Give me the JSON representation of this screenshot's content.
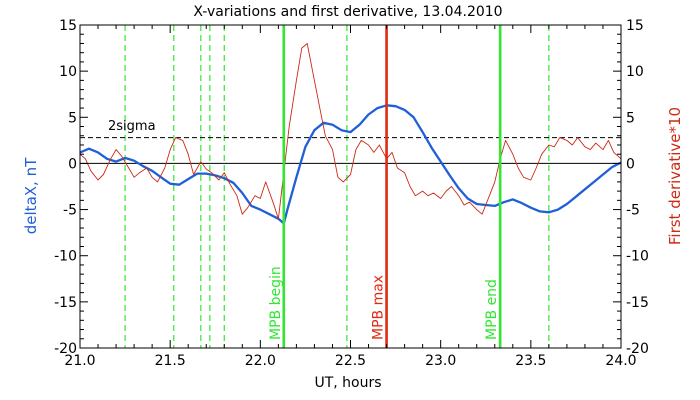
{
  "chart_data": {
    "type": "line",
    "title": "X-variations and first derivative, 13.04.2010",
    "xlabel": "UT, hours",
    "ylabel_left": "deltaX, nT",
    "ylabel_right": "First derivative*10",
    "xlim": [
      21.0,
      24.0
    ],
    "ylim": [
      -20,
      15
    ],
    "x_ticks": [
      21.0,
      21.5,
      22.0,
      22.5,
      23.0,
      23.5,
      24.0
    ],
    "x_tick_labels": [
      "21.0",
      "21.5",
      "22.0",
      "22.5",
      "23.0",
      "23.5",
      "24.0"
    ],
    "y_ticks": [
      15,
      10,
      5,
      0,
      -5,
      -10,
      -15,
      -20
    ],
    "y_tick_labels": [
      "15",
      "10",
      "5",
      "0",
      "-5",
      "-10",
      "-15",
      "-20"
    ],
    "sigma_level": 2.8,
    "sigma_label": "2sigma",
    "zero_line": 0,
    "series": [
      {
        "key": "deltax",
        "color": "#1f5fd8",
        "x": [
          21.0,
          21.05,
          21.1,
          21.15,
          21.2,
          21.25,
          21.3,
          21.35,
          21.4,
          21.45,
          21.5,
          21.55,
          21.6,
          21.65,
          21.7,
          21.75,
          21.8,
          21.85,
          21.9,
          21.95,
          22.0,
          22.05,
          22.1,
          22.13,
          22.15,
          22.2,
          22.25,
          22.3,
          22.35,
          22.4,
          22.45,
          22.5,
          22.55,
          22.6,
          22.65,
          22.7,
          22.75,
          22.8,
          22.85,
          22.9,
          22.95,
          23.0,
          23.05,
          23.1,
          23.15,
          23.2,
          23.25,
          23.3,
          23.35,
          23.4,
          23.45,
          23.5,
          23.55,
          23.6,
          23.65,
          23.7,
          23.75,
          23.8,
          23.85,
          23.9,
          23.95,
          24.0
        ],
        "values": [
          1.2,
          1.6,
          1.2,
          0.5,
          0.2,
          0.6,
          0.3,
          -0.3,
          -0.8,
          -1.5,
          -2.2,
          -2.3,
          -1.7,
          -1.1,
          -1.1,
          -1.3,
          -1.6,
          -2.1,
          -3.2,
          -4.6,
          -5.0,
          -5.5,
          -6.0,
          -6.5,
          -5.0,
          -1.5,
          1.8,
          3.6,
          4.4,
          4.2,
          3.6,
          3.4,
          4.2,
          5.3,
          6.0,
          6.3,
          6.2,
          5.8,
          5.0,
          3.4,
          1.7,
          0.2,
          -1.3,
          -2.7,
          -3.8,
          -4.4,
          -4.5,
          -4.6,
          -4.2,
          -3.9,
          -4.3,
          -4.8,
          -5.2,
          -5.3,
          -5.0,
          -4.4,
          -3.6,
          -2.8,
          -2.0,
          -1.2,
          -0.4,
          0.1
        ]
      },
      {
        "key": "derivative",
        "color": "#cc2a15",
        "x": [
          21.0,
          21.03,
          21.06,
          21.1,
          21.13,
          21.17,
          21.2,
          21.23,
          21.27,
          21.3,
          21.33,
          21.37,
          21.4,
          21.43,
          21.47,
          21.5,
          21.53,
          21.57,
          21.6,
          21.63,
          21.67,
          21.7,
          21.73,
          21.77,
          21.8,
          21.83,
          21.87,
          21.9,
          21.93,
          21.97,
          22.0,
          22.03,
          22.07,
          22.1,
          22.13,
          22.16,
          22.2,
          22.23,
          22.26,
          22.3,
          22.33,
          22.36,
          22.4,
          22.43,
          22.46,
          22.5,
          22.53,
          22.56,
          22.6,
          22.63,
          22.66,
          22.7,
          22.73,
          22.76,
          22.8,
          22.83,
          22.86,
          22.9,
          22.93,
          22.96,
          23.0,
          23.03,
          23.06,
          23.1,
          23.13,
          23.16,
          23.2,
          23.23,
          23.26,
          23.3,
          23.33,
          23.36,
          23.4,
          23.43,
          23.46,
          23.5,
          23.53,
          23.56,
          23.6,
          23.63,
          23.66,
          23.7,
          23.73,
          23.76,
          23.8,
          23.83,
          23.86,
          23.9,
          23.93,
          23.96,
          24.0
        ],
        "values": [
          1.0,
          0.5,
          -0.8,
          -1.8,
          -1.2,
          0.5,
          1.5,
          0.8,
          -0.5,
          -1.5,
          -1.0,
          -0.5,
          -1.5,
          -2.0,
          -0.5,
          1.5,
          2.8,
          2.5,
          1.0,
          -1.2,
          0.2,
          -0.6,
          -1.0,
          -1.8,
          -1.0,
          -2.2,
          -3.5,
          -5.5,
          -4.8,
          -3.5,
          -3.8,
          -2.0,
          -4.2,
          -6.0,
          -1.0,
          4.0,
          9.0,
          12.5,
          13.0,
          9.0,
          6.0,
          3.0,
          1.5,
          -1.5,
          -2.0,
          -1.2,
          1.5,
          2.5,
          2.0,
          1.2,
          2.0,
          0.5,
          1.2,
          -0.5,
          -1.0,
          -2.5,
          -3.5,
          -3.0,
          -3.5,
          -3.2,
          -3.8,
          -3.0,
          -2.5,
          -3.5,
          -4.5,
          -4.2,
          -5.0,
          -5.5,
          -4.0,
          -2.0,
          0.5,
          2.5,
          1.0,
          -0.5,
          -1.5,
          -1.8,
          -0.5,
          1.0,
          2.0,
          1.8,
          2.8,
          2.5,
          2.0,
          2.8,
          1.8,
          1.5,
          2.2,
          1.5,
          2.5,
          1.2,
          0.5
        ]
      }
    ],
    "vlines_green_dashed": [
      21.25,
      21.52,
      21.67,
      21.72,
      21.8,
      22.48,
      23.6
    ],
    "events": [
      {
        "x": 22.13,
        "label": "MPB begin",
        "color": "#33e633"
      },
      {
        "x": 22.7,
        "label": "MPB max",
        "color": "#e02a14"
      },
      {
        "x": 23.33,
        "label": "MPB end",
        "color": "#33e633"
      }
    ]
  }
}
